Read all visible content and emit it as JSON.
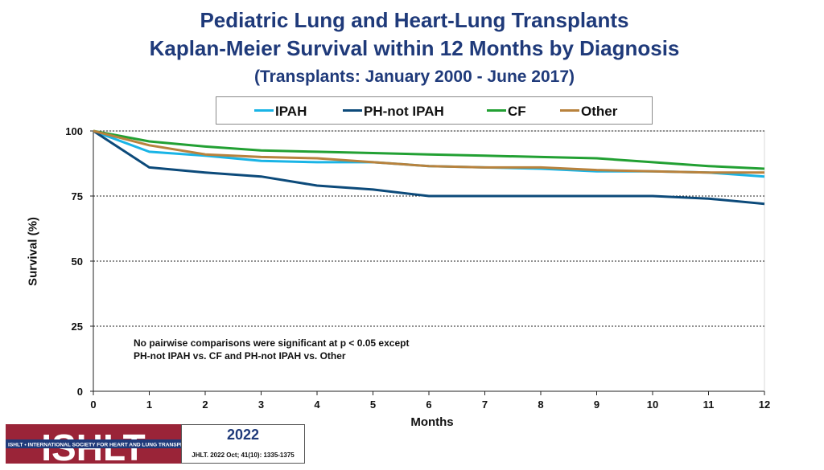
{
  "chart_data": {
    "type": "line",
    "title": "Pediatric Lung and Heart-Lung Transplants",
    "subtitle": "Kaplan-Meier Survival within 12 Months by Diagnosis",
    "subtitle2": "(Transplants: January 2000 - June 2017)",
    "xlabel": "Months",
    "ylabel": "Survival (%)",
    "xlim": [
      0,
      12
    ],
    "ylim": [
      0,
      100
    ],
    "x_ticks": [
      "0",
      "1",
      "2",
      "3",
      "4",
      "5",
      "6",
      "7",
      "8",
      "9",
      "10",
      "11",
      "12"
    ],
    "y_ticks": [
      "0",
      "25",
      "50",
      "75",
      "100"
    ],
    "grid": "dashed horizontal",
    "legend_position": "top",
    "x": [
      0,
      1,
      2,
      3,
      4,
      5,
      6,
      7,
      8,
      9,
      10,
      11,
      12
    ],
    "series": [
      {
        "name": "IPAH",
        "color": "#19b4e6",
        "values": [
          100,
          92,
          90.5,
          88.5,
          88,
          88,
          86.5,
          86,
          85.5,
          84.5,
          84.5,
          84,
          82.5
        ]
      },
      {
        "name": "PH-not IPAH",
        "color": "#0c4a7a",
        "values": [
          100,
          86,
          84,
          82.5,
          79,
          77.5,
          75,
          75,
          75,
          75,
          75,
          74,
          72
        ]
      },
      {
        "name": "CF",
        "color": "#22a033",
        "values": [
          100,
          96,
          94,
          92.5,
          92,
          91.5,
          91,
          90.5,
          90,
          89.5,
          88,
          86.5,
          85.5
        ]
      },
      {
        "name": "Other",
        "color": "#b8823d",
        "values": [
          100,
          94.5,
          91,
          90,
          89.5,
          88,
          86.5,
          86,
          86,
          85,
          84.5,
          84,
          84
        ]
      }
    ],
    "annotation": [
      "No pairwise comparisons were significant at p < 0.05  except",
      "PH-not IPAH vs. CF and PH-not IPAH vs. Other"
    ]
  },
  "footer": {
    "logo_text": "ISHLT",
    "logo_strip": "ISHLT • INTERNATIONAL SOCIETY FOR HEART AND LUNG TRANSPLANTATION",
    "year": "2022",
    "citation": "JHLT. 2022 Oct; 41(10): 1335-1375",
    "logo_color": "#9a2438"
  }
}
